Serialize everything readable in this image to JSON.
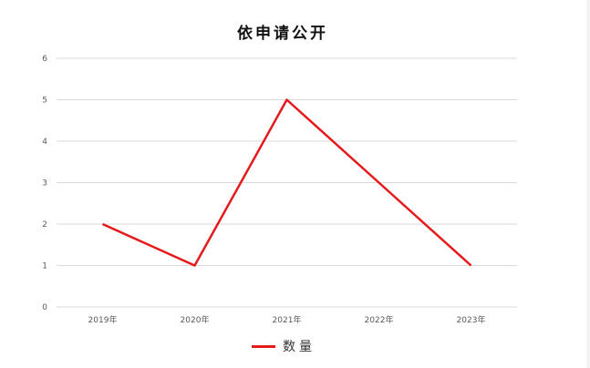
{
  "chart_data": {
    "type": "line",
    "title": "依申请公开",
    "categories": [
      "2019年",
      "2020年",
      "2021年",
      "2022年",
      "2023年"
    ],
    "series": [
      {
        "name": "数量",
        "values": [
          2,
          1,
          5,
          3,
          1
        ],
        "color": "#e41a1c"
      }
    ],
    "ylim": [
      0,
      6
    ],
    "yticks": [
      "0",
      "1",
      "2",
      "3",
      "4",
      "5",
      "6"
    ],
    "grid": true,
    "legend": "bottom"
  }
}
